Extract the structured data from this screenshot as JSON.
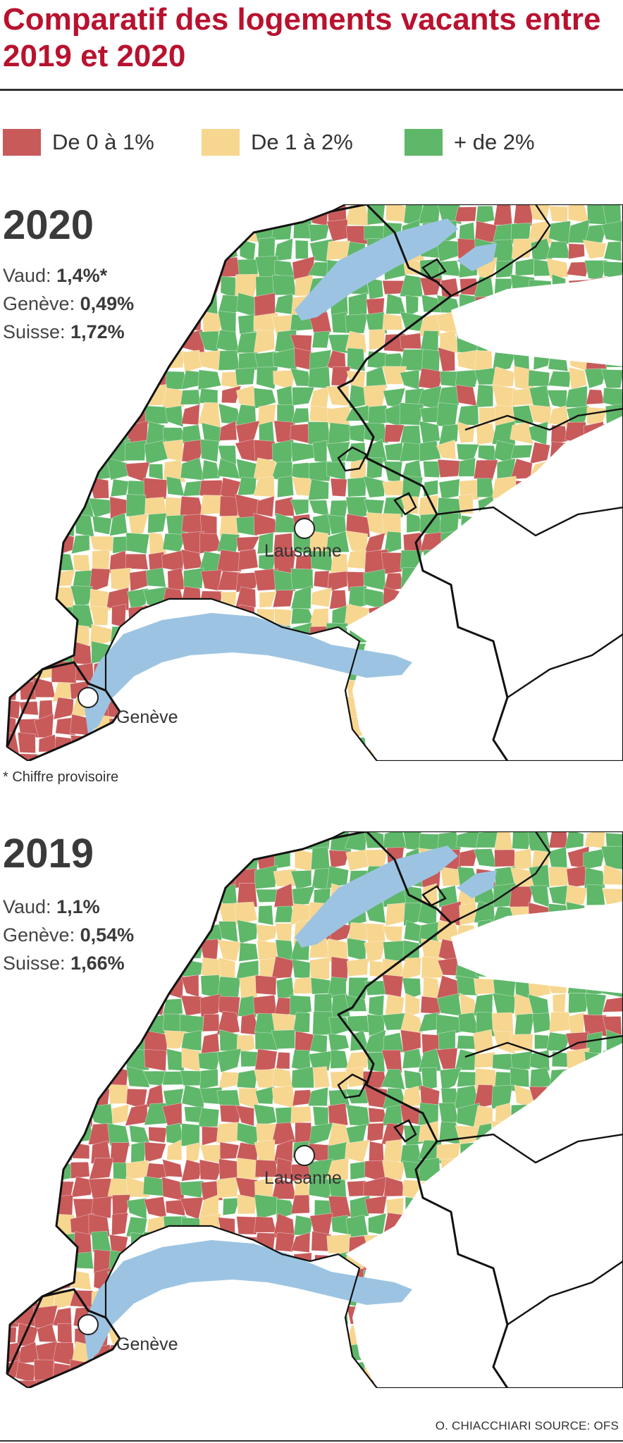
{
  "title": "Comparatif des logements vacants entre 2019 et 2020",
  "legend": [
    {
      "label": "De 0 à 1%",
      "color": "#c85a5a"
    },
    {
      "label": "De 1 à 2%",
      "color": "#f7d690"
    },
    {
      "label": "+ de 2%",
      "color": "#5fb76a"
    }
  ],
  "colors": {
    "lake": "#9cc4e2",
    "border": "#111111",
    "outside": "#ffffff"
  },
  "panels": [
    {
      "year": "2020",
      "stats": [
        {
          "label": "Vaud: ",
          "value": "1,4%*"
        },
        {
          "label": "Genève: ",
          "value": "0,49%"
        },
        {
          "label": "Suisse: ",
          "value": "1,72%"
        }
      ],
      "cities": [
        {
          "name": "Lausanne"
        },
        {
          "name": "Genève"
        }
      ]
    },
    {
      "year": "2019",
      "stats": [
        {
          "label": "Vaud: ",
          "value": "1,1%"
        },
        {
          "label": "Genève: ",
          "value": "0,54%"
        },
        {
          "label": "Suisse: ",
          "value": "1,66%"
        }
      ],
      "cities": [
        {
          "name": "Lausanne"
        },
        {
          "name": "Genève"
        }
      ]
    }
  ],
  "footnote": "* Chiffre provisoire",
  "credit": "O. CHIACCHIARI   SOURCE: OFS"
}
